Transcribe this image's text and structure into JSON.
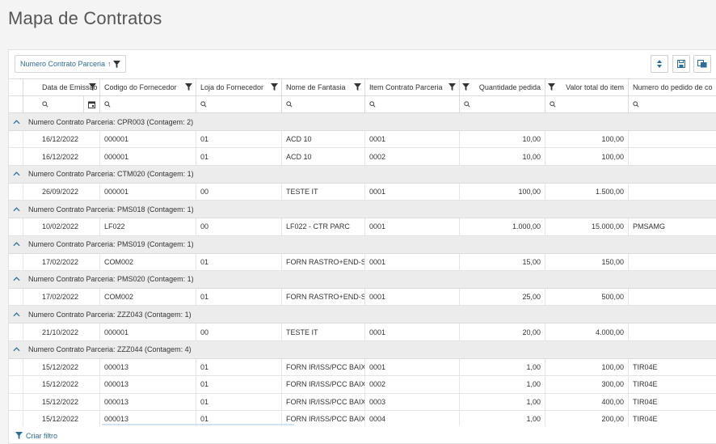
{
  "page": {
    "title": "Mapa de Contratos"
  },
  "toolbar": {
    "group_chip_label": "Numero Contrato Parceria",
    "group_chip_sort": "↑",
    "buttons": [
      "sort-icon",
      "save-icon",
      "export-icon"
    ]
  },
  "columns": [
    "Data de Emissao",
    "Codigo do Fornecedor",
    "Loja do Fornecedor",
    "Nome de Fantasia",
    "Item Contrato Parceria",
    "Quantidade pedida",
    "Valor total do item",
    "Numero do pedido de co"
  ],
  "groups": [
    {
      "label": "Numero Contrato Parceria: CPR003 (Contagem: 2)",
      "rows": [
        [
          "16/12/2022",
          "000001",
          "01",
          "ACD 10",
          "0001",
          "10,00",
          "100,00",
          ""
        ],
        [
          "16/12/2022",
          "000001",
          "01",
          "ACD 10",
          "0002",
          "10,00",
          "100,00",
          ""
        ]
      ]
    },
    {
      "label": "Numero Contrato Parceria: CTM020 (Contagem: 1)",
      "rows": [
        [
          "26/09/2022",
          "000001",
          "00",
          "TESTE IT",
          "0001",
          "100,00",
          "1.500,00",
          ""
        ]
      ]
    },
    {
      "label": "Numero Contrato Parceria: PMS018 (Contagem: 1)",
      "rows": [
        [
          "10/02/2022",
          "LF022",
          "00",
          "LF022 - CTR PARC",
          "0001",
          "1.000,00",
          "15.000,00",
          "PMSAMG"
        ]
      ]
    },
    {
      "label": "Numero Contrato Parceria: PMS019 (Contagem: 1)",
      "rows": [
        [
          "17/02/2022",
          "COM002",
          "01",
          "FORN RASTRO+END-SP",
          "0001",
          "15,00",
          "150,00",
          ""
        ]
      ]
    },
    {
      "label": "Numero Contrato Parceria: PMS020 (Contagem: 1)",
      "rows": [
        [
          "17/02/2022",
          "COM002",
          "01",
          "FORN RASTRO+END-SP",
          "0001",
          "25,00",
          "500,00",
          ""
        ]
      ]
    },
    {
      "label": "Numero Contrato Parceria: ZZZ043 (Contagem: 1)",
      "rows": [
        [
          "21/10/2022",
          "000001",
          "00",
          "TESTE IT",
          "0001",
          "20,00",
          "4.000,00",
          ""
        ]
      ]
    },
    {
      "label": "Numero Contrato Parceria: ZZZ044 (Contagem: 4)",
      "rows": [
        [
          "15/12/2022",
          "000013",
          "01",
          "FORN IR/ISS/PCC BAIX",
          "0001",
          "1,00",
          "100,00",
          "TIR04E"
        ],
        [
          "15/12/2022",
          "000013",
          "01",
          "FORN IR/ISS/PCC BAIX",
          "0002",
          "1,00",
          "300,00",
          "TIR04E"
        ],
        [
          "15/12/2022",
          "000013",
          "01",
          "FORN IR/ISS/PCC BAIX",
          "0003",
          "1,00",
          "400,00",
          "TIR04E"
        ],
        [
          "15/12/2022",
          "000013",
          "01",
          "FORN IR/ISS/PCC BAIX",
          "0004",
          "1,00",
          "200,00",
          "TIR04E"
        ]
      ]
    }
  ],
  "footer": {
    "create_filter_label": "Criar filtro"
  },
  "colors": {
    "accent": "#2c6e9a",
    "group_bg": "#ececec",
    "border": "#dcdcdc"
  }
}
